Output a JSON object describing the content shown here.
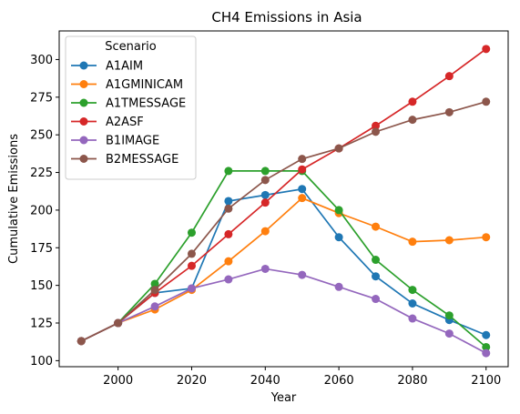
{
  "chart_data": {
    "type": "line",
    "title": "CH4 Emissions in Asia",
    "xlabel": "Year",
    "ylabel": "Cumulative Emissions",
    "x": [
      1990,
      2000,
      2010,
      2020,
      2030,
      2040,
      2050,
      2060,
      2070,
      2080,
      2090,
      2100
    ],
    "xlim": [
      1984,
      2106
    ],
    "ylim": [
      96,
      319
    ],
    "xticks": [
      2000,
      2020,
      2040,
      2060,
      2080,
      2100
    ],
    "yticks": [
      100,
      125,
      150,
      175,
      200,
      225,
      250,
      275,
      300
    ],
    "grid": false,
    "legend": {
      "title": "Scenario",
      "position": "top-left"
    },
    "series": [
      {
        "name": "A1AIM",
        "color": "#1f77b4",
        "values": [
          113,
          125,
          145,
          148,
          206,
          210,
          214,
          182,
          156,
          138,
          127,
          117
        ]
      },
      {
        "name": "A1GMINICAM",
        "color": "#ff7f0e",
        "values": [
          113,
          125,
          134,
          147,
          166,
          186,
          208,
          198,
          189,
          179,
          180,
          182
        ]
      },
      {
        "name": "A1TMESSAGE",
        "color": "#2ca02c",
        "values": [
          113,
          125,
          151,
          185,
          226,
          226,
          226,
          200,
          167,
          147,
          130,
          109
        ]
      },
      {
        "name": "A2ASF",
        "color": "#d62728",
        "values": [
          113,
          125,
          145,
          163,
          184,
          205,
          227,
          241,
          256,
          272,
          289,
          307
        ]
      },
      {
        "name": "B1IMAGE",
        "color": "#9467bd",
        "values": [
          113,
          125,
          136,
          148,
          154,
          161,
          157,
          149,
          141,
          128,
          118,
          105
        ]
      },
      {
        "name": "B2MESSAGE",
        "color": "#8c564b",
        "values": [
          113,
          125,
          147,
          171,
          201,
          220,
          234,
          241,
          252,
          260,
          265,
          272
        ]
      }
    ]
  }
}
